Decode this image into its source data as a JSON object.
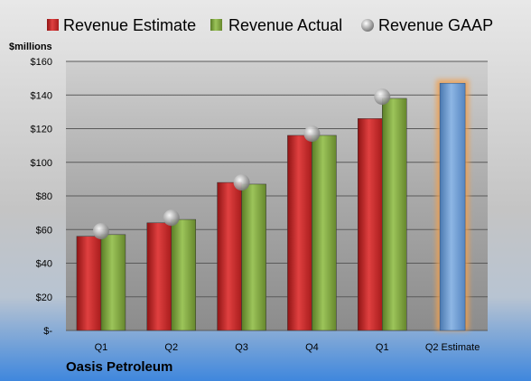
{
  "chart_data": {
    "type": "bar",
    "categories": [
      "Q1",
      "Q2",
      "Q3",
      "Q4",
      "Q1",
      "Q2 Estimate"
    ],
    "series": [
      {
        "name": "Revenue Estimate",
        "color": "#d42a2a",
        "values": [
          56,
          64,
          88,
          116,
          126,
          null
        ]
      },
      {
        "name": "Revenue Actual",
        "color": "#7ea53a",
        "values": [
          57,
          66,
          87,
          116,
          138,
          null
        ]
      },
      {
        "name": "Revenue GAAP",
        "color": "#b8b8b8",
        "values": [
          59,
          67,
          88,
          117,
          139,
          null
        ]
      },
      {
        "name": "",
        "color": "#6699cc",
        "values": [
          null,
          null,
          null,
          null,
          null,
          147
        ]
      }
    ],
    "ylabel": "$millions",
    "ylim": [
      0,
      160
    ],
    "yticks": [
      0,
      20,
      40,
      60,
      80,
      100,
      120,
      140,
      160
    ],
    "ytick_labels": [
      "$-",
      "$20",
      "$40",
      "$60",
      "$80",
      "$100",
      "$120",
      "$140",
      "$160"
    ],
    "grid": true,
    "legend_position": "top",
    "highlight_category": "Q2 Estimate",
    "highlight_color": "#f0a050",
    "company": "Oasis Petroleum"
  }
}
